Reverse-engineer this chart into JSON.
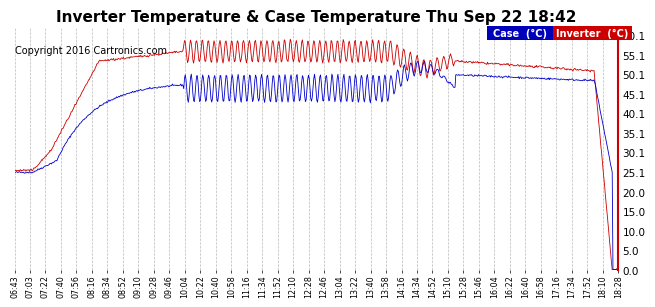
{
  "title": "Inverter Temperature & Case Temperature Thu Sep 22 18:42",
  "copyright": "Copyright 2016 Cartronics.com",
  "ylim": [
    0.0,
    62.0
  ],
  "yticks": [
    0.0,
    5.0,
    10.0,
    15.0,
    20.0,
    25.1,
    30.1,
    35.1,
    40.1,
    45.1,
    50.1,
    55.1,
    60.1
  ],
  "ytick_labels": [
    "0.0",
    "5.0",
    "10.0",
    "15.0",
    "20.0",
    "25.1",
    "30.1",
    "35.1",
    "40.1",
    "45.1",
    "50.1",
    "55.1",
    "60.1"
  ],
  "bg_color": "#ffffff",
  "grid_color": "#bbbbbb",
  "case_color": "#0000cc",
  "inverter_color": "#cc0000",
  "legend_case_bg": "#0000bb",
  "legend_inverter_bg": "#cc0000",
  "legend_text_color": "#ffffff",
  "title_fontsize": 11,
  "copyright_fontsize": 7,
  "xtick_labels": [
    "06:43",
    "07:03",
    "07:22",
    "07:40",
    "07:56",
    "08:16",
    "08:34",
    "08:52",
    "09:10",
    "09:28",
    "09:46",
    "10:04",
    "10:22",
    "10:40",
    "10:58",
    "11:16",
    "11:34",
    "11:52",
    "12:10",
    "12:28",
    "12:46",
    "13:04",
    "13:22",
    "13:40",
    "13:58",
    "14:16",
    "14:34",
    "14:52",
    "15:10",
    "15:28",
    "15:46",
    "16:04",
    "16:22",
    "16:40",
    "16:58",
    "17:16",
    "17:34",
    "17:52",
    "18:10",
    "18:28"
  ],
  "n_points": 800
}
